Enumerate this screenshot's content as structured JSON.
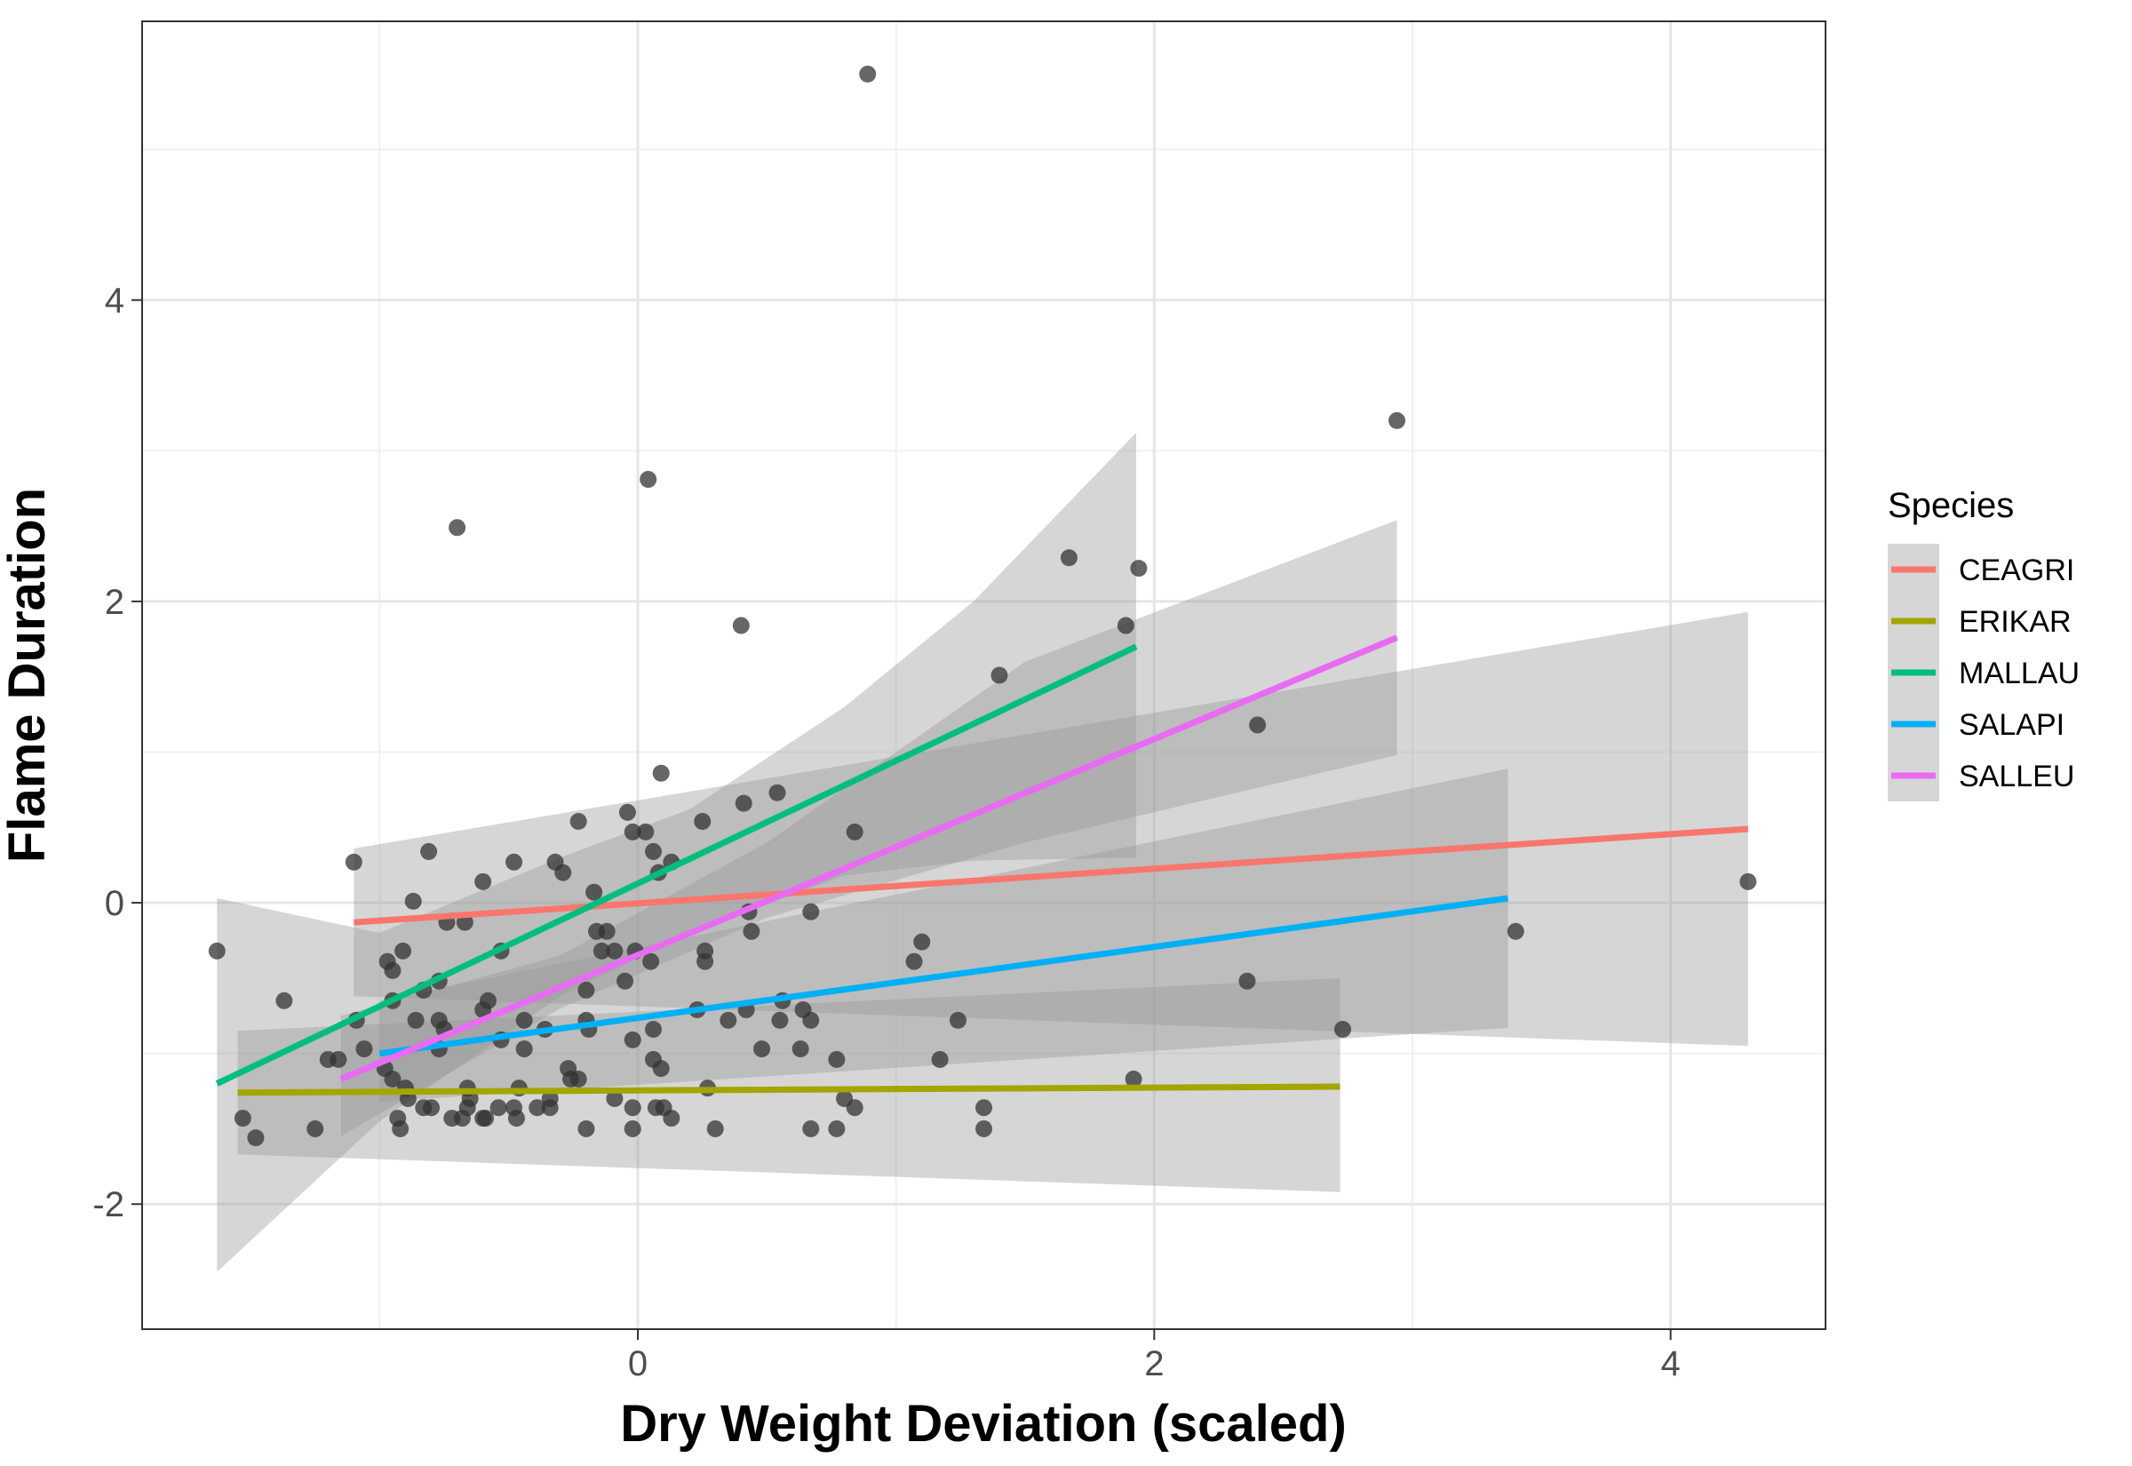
{
  "chart_data": {
    "type": "scatter",
    "title": "",
    "xlabel": "Dry Weight Deviation (scaled)",
    "ylabel": "Flame Duration",
    "xlim": [
      -1.92,
      4.6
    ],
    "ylim": [
      -2.83,
      5.85
    ],
    "x_ticks": [
      0,
      2,
      4
    ],
    "y_ticks": [
      -2,
      0,
      2,
      4
    ],
    "x_tick_labels": [
      "0",
      "2",
      "4"
    ],
    "y_tick_labels": [
      "-2",
      "0",
      "2",
      "4"
    ],
    "grid": true,
    "legend": {
      "title": "Species",
      "position": "right"
    },
    "band_color": "#999999",
    "point_color": "#333333",
    "series": [
      {
        "name": "CEAGRI",
        "color": "#F8766D",
        "line": {
          "x": [
            -1.1,
            4.3
          ],
          "y": [
            -0.13,
            0.49
          ]
        },
        "band": [
          {
            "x": -1.1,
            "lo": -0.62,
            "hi": 0.36
          },
          {
            "x": 4.3,
            "lo": -0.95,
            "hi": 1.93
          }
        ]
      },
      {
        "name": "ERIKAR",
        "color": "#A3A500",
        "line": {
          "x": [
            -1.55,
            2.72
          ],
          "y": [
            -1.26,
            -1.22
          ]
        },
        "band": [
          {
            "x": -1.55,
            "lo": -1.67,
            "hi": -0.85
          },
          {
            "x": 2.72,
            "lo": -1.92,
            "hi": -0.5
          }
        ]
      },
      {
        "name": "MALLAU",
        "color": "#00BF7D",
        "line": {
          "x": [
            -1.63,
            1.93
          ],
          "y": [
            -1.2,
            1.7
          ]
        },
        "band": [
          {
            "x": -1.63,
            "lo": -2.45,
            "hi": 0.03
          },
          {
            "x": -1.0,
            "lo": -1.45,
            "hi": -0.2
          },
          {
            "x": -0.3,
            "lo": -0.62,
            "hi": 0.3
          },
          {
            "x": 0.2,
            "lo": -0.2,
            "hi": 0.62
          },
          {
            "x": 0.8,
            "lo": 0.18,
            "hi": 1.3
          },
          {
            "x": 1.3,
            "lo": 0.28,
            "hi": 2.0
          },
          {
            "x": 1.93,
            "lo": 0.3,
            "hi": 3.12
          }
        ]
      },
      {
        "name": "SALAPI",
        "color": "#00B0F6",
        "line": {
          "x": [
            -1.0,
            3.37
          ],
          "y": [
            -1.0,
            0.03
          ]
        },
        "band": [
          {
            "x": -1.0,
            "lo": -1.32,
            "hi": -0.65
          },
          {
            "x": 3.37,
            "lo": -0.83,
            "hi": 0.89
          }
        ]
      },
      {
        "name": "SALLEU",
        "color": "#E76BF3",
        "line": {
          "x": [
            -1.15,
            2.94
          ],
          "y": [
            -1.17,
            1.76
          ]
        },
        "band": [
          {
            "x": -1.15,
            "lo": -1.55,
            "hi": -0.75
          },
          {
            "x": -0.3,
            "lo": -0.7,
            "hi": -0.35
          },
          {
            "x": 0.5,
            "lo": -0.1,
            "hi": 0.4
          },
          {
            "x": 1.5,
            "lo": 0.4,
            "hi": 1.6
          },
          {
            "x": 2.94,
            "lo": 0.98,
            "hi": 2.54
          }
        ]
      }
    ],
    "points": [
      [
        0.89,
        5.5
      ],
      [
        0.04,
        2.81
      ],
      [
        2.94,
        3.2
      ],
      [
        -0.7,
        2.49
      ],
      [
        1.67,
        2.29
      ],
      [
        1.94,
        2.22
      ],
      [
        0.4,
        1.84
      ],
      [
        1.89,
        1.84
      ],
      [
        1.4,
        1.51
      ],
      [
        2.4,
        1.18
      ],
      [
        0.09,
        0.86
      ],
      [
        0.54,
        0.73
      ],
      [
        0.41,
        0.66
      ],
      [
        -0.23,
        0.54
      ],
      [
        0.25,
        0.54
      ],
      [
        -0.04,
        0.6
      ],
      [
        -0.02,
        0.47
      ],
      [
        0.03,
        0.47
      ],
      [
        0.84,
        0.47
      ],
      [
        0.06,
        0.34
      ],
      [
        -0.81,
        0.34
      ],
      [
        -1.1,
        0.27
      ],
      [
        -0.48,
        0.27
      ],
      [
        -0.32,
        0.27
      ],
      [
        0.13,
        0.27
      ],
      [
        -0.29,
        0.2
      ],
      [
        0.08,
        0.2
      ],
      [
        -0.6,
        0.14
      ],
      [
        4.3,
        0.14
      ],
      [
        -0.17,
        0.07
      ],
      [
        -0.87,
        0.01
      ],
      [
        0.67,
        -0.06
      ],
      [
        0.43,
        -0.06
      ],
      [
        -0.74,
        -0.13
      ],
      [
        -0.67,
        -0.13
      ],
      [
        0.44,
        -0.19
      ],
      [
        -0.16,
        -0.19
      ],
      [
        -0.12,
        -0.19
      ],
      [
        3.4,
        -0.19
      ],
      [
        1.1,
        -0.26
      ],
      [
        -0.01,
        -0.32
      ],
      [
        -0.09,
        -0.32
      ],
      [
        -0.14,
        -0.32
      ],
      [
        -0.53,
        -0.32
      ],
      [
        -0.91,
        -0.32
      ],
      [
        -1.63,
        -0.32
      ],
      [
        0.26,
        -0.32
      ],
      [
        1.07,
        -0.39
      ],
      [
        0.05,
        -0.39
      ],
      [
        -0.97,
        -0.39
      ],
      [
        0.26,
        -0.39
      ],
      [
        -0.95,
        -0.45
      ],
      [
        -0.05,
        -0.52
      ],
      [
        -0.77,
        -0.52
      ],
      [
        2.36,
        -0.52
      ],
      [
        -0.83,
        -0.58
      ],
      [
        -0.2,
        -0.58
      ],
      [
        -1.37,
        -0.65
      ],
      [
        -0.58,
        -0.65
      ],
      [
        -0.95,
        -0.65
      ],
      [
        0.56,
        -0.65
      ],
      [
        -0.6,
        -0.71
      ],
      [
        0.64,
        -0.71
      ],
      [
        0.42,
        -0.71
      ],
      [
        0.23,
        -0.71
      ],
      [
        -0.77,
        -0.78
      ],
      [
        -1.09,
        -0.78
      ],
      [
        -0.44,
        -0.78
      ],
      [
        0.35,
        -0.78
      ],
      [
        -0.2,
        -0.78
      ],
      [
        1.24,
        -0.78
      ],
      [
        0.55,
        -0.78
      ],
      [
        0.67,
        -0.78
      ],
      [
        -0.86,
        -0.78
      ],
      [
        0.06,
        -0.84
      ],
      [
        -0.75,
        -0.84
      ],
      [
        -0.36,
        -0.84
      ],
      [
        -0.19,
        -0.84
      ],
      [
        2.73,
        -0.84
      ],
      [
        -0.53,
        -0.91
      ],
      [
        -0.02,
        -0.91
      ],
      [
        -0.77,
        -0.97
      ],
      [
        -0.44,
        -0.97
      ],
      [
        -1.06,
        -0.97
      ],
      [
        0.48,
        -0.97
      ],
      [
        0.63,
        -0.97
      ],
      [
        -1.2,
        -1.04
      ],
      [
        -1.16,
        -1.04
      ],
      [
        0.06,
        -1.04
      ],
      [
        0.77,
        -1.04
      ],
      [
        1.17,
        -1.04
      ],
      [
        -0.98,
        -1.1
      ],
      [
        -0.27,
        -1.1
      ],
      [
        0.09,
        -1.1
      ],
      [
        -0.95,
        -1.17
      ],
      [
        -0.26,
        -1.17
      ],
      [
        -0.23,
        -1.17
      ],
      [
        1.92,
        -1.17
      ],
      [
        -0.9,
        -1.23
      ],
      [
        0.27,
        -1.23
      ],
      [
        -0.46,
        -1.23
      ],
      [
        -0.66,
        -1.23
      ],
      [
        -0.65,
        -1.3
      ],
      [
        -0.34,
        -1.3
      ],
      [
        -0.89,
        -1.3
      ],
      [
        0.8,
        -1.3
      ],
      [
        -0.09,
        -1.3
      ],
      [
        -0.83,
        -1.36
      ],
      [
        -0.54,
        -1.36
      ],
      [
        -0.66,
        -1.36
      ],
      [
        -0.48,
        -1.36
      ],
      [
        -0.34,
        -1.36
      ],
      [
        -0.39,
        -1.36
      ],
      [
        0.07,
        -1.36
      ],
      [
        0.1,
        -1.36
      ],
      [
        -0.02,
        -1.36
      ],
      [
        1.34,
        -1.36
      ],
      [
        0.84,
        -1.36
      ],
      [
        -0.8,
        -1.36
      ],
      [
        -0.59,
        -1.43
      ],
      [
        -0.68,
        -1.43
      ],
      [
        -0.72,
        -1.43
      ],
      [
        -1.53,
        -1.43
      ],
      [
        -0.93,
        -1.43
      ],
      [
        -0.47,
        -1.43
      ],
      [
        0.13,
        -1.43
      ],
      [
        -0.6,
        -1.43
      ],
      [
        -1.25,
        -1.5
      ],
      [
        -0.2,
        -1.5
      ],
      [
        -0.02,
        -1.5
      ],
      [
        0.3,
        -1.5
      ],
      [
        0.67,
        -1.5
      ],
      [
        0.77,
        -1.5
      ],
      [
        1.34,
        -1.5
      ],
      [
        -0.92,
        -1.5
      ],
      [
        -1.48,
        -1.56
      ]
    ]
  }
}
